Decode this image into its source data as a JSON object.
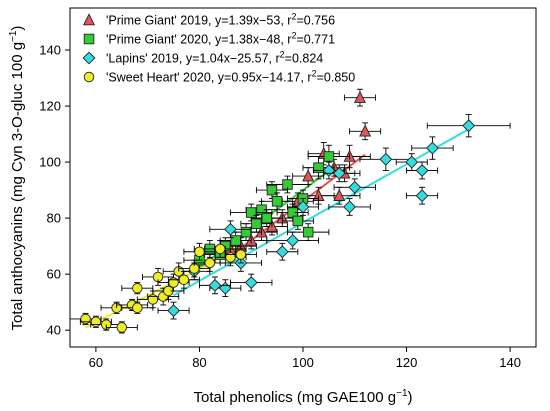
{
  "chart_data": {
    "type": "scatter",
    "xlabel": "Total phenolics (mg GAE100 g",
    "xlabel_sup": "−1",
    "xlabel_tail": ")",
    "ylabel": "Total anthocyanins (mg Cyn 3-O-gluc 100 g",
    "ylabel_sup": "−1",
    "ylabel_tail": ")",
    "xlim": [
      55,
      145
    ],
    "ylim": [
      34,
      155
    ],
    "xticks": [
      60,
      80,
      100,
      120,
      140
    ],
    "yticks": [
      40,
      60,
      80,
      100,
      120,
      140
    ],
    "grid": false,
    "legend_position": "top-left",
    "series": [
      {
        "name": "'Prime Giant' 2019, y=1.39x−53, r",
        "r2_sup": "2",
        "r2_value": "=0.756",
        "marker": "triangle",
        "color": "#e05555",
        "fit": {
          "slope": 1.39,
          "intercept": -53,
          "x": [
            85,
            112
          ]
        },
        "points": [
          {
            "x": 111,
            "y": 123,
            "xerr": 3,
            "yerr": 3
          },
          {
            "x": 112,
            "y": 111,
            "xerr": 3,
            "yerr": 3
          },
          {
            "x": 109,
            "y": 102,
            "xerr": 4,
            "yerr": 4
          },
          {
            "x": 104,
            "y": 103,
            "xerr": 3,
            "yerr": 4
          },
          {
            "x": 106,
            "y": 98,
            "xerr": 3,
            "yerr": 3
          },
          {
            "x": 108,
            "y": 96,
            "xerr": 3,
            "yerr": 3
          },
          {
            "x": 101,
            "y": 95,
            "xerr": 3,
            "yerr": 3
          },
          {
            "x": 107,
            "y": 88,
            "xerr": 4,
            "yerr": 3
          },
          {
            "x": 103,
            "y": 88,
            "xerr": 3,
            "yerr": 3
          },
          {
            "x": 99,
            "y": 86,
            "xerr": 3,
            "yerr": 3
          },
          {
            "x": 96,
            "y": 80,
            "xerr": 4,
            "yerr": 3
          },
          {
            "x": 94,
            "y": 77,
            "xerr": 3,
            "yerr": 3
          },
          {
            "x": 92,
            "y": 75,
            "xerr": 3,
            "yerr": 3
          },
          {
            "x": 90,
            "y": 72,
            "xerr": 3,
            "yerr": 3
          },
          {
            "x": 88,
            "y": 70,
            "xerr": 3,
            "yerr": 3
          },
          {
            "x": 86,
            "y": 69,
            "xerr": 3,
            "yerr": 3
          }
        ]
      },
      {
        "name": "'Prime Giant' 2020, y=1.38x−48, r",
        "r2_sup": "2",
        "r2_value": "=0.771",
        "marker": "square",
        "color": "#33cc33",
        "fit": {
          "slope": 1.38,
          "intercept": -48,
          "x": [
            80,
            106
          ]
        },
        "points": [
          {
            "x": 105,
            "y": 102,
            "xerr": 4,
            "yerr": 4
          },
          {
            "x": 103,
            "y": 98,
            "xerr": 3,
            "yerr": 4
          },
          {
            "x": 97,
            "y": 92,
            "xerr": 4,
            "yerr": 3
          },
          {
            "x": 100,
            "y": 87,
            "xerr": 3,
            "yerr": 3
          },
          {
            "x": 94,
            "y": 90,
            "xerr": 3,
            "yerr": 3
          },
          {
            "x": 95,
            "y": 86,
            "xerr": 3,
            "yerr": 3
          },
          {
            "x": 92,
            "y": 83,
            "xerr": 3,
            "yerr": 3
          },
          {
            "x": 93,
            "y": 80,
            "xerr": 3,
            "yerr": 3
          },
          {
            "x": 90,
            "y": 82,
            "xerr": 4,
            "yerr": 3
          },
          {
            "x": 91,
            "y": 78,
            "xerr": 3,
            "yerr": 3
          },
          {
            "x": 98,
            "y": 82,
            "xerr": 3,
            "yerr": 3
          },
          {
            "x": 99,
            "y": 79,
            "xerr": 3,
            "yerr": 3
          },
          {
            "x": 101,
            "y": 75,
            "xerr": 4,
            "yerr": 3
          },
          {
            "x": 89,
            "y": 75,
            "xerr": 3,
            "yerr": 3
          },
          {
            "x": 87,
            "y": 72,
            "xerr": 3,
            "yerr": 3
          },
          {
            "x": 85,
            "y": 70,
            "xerr": 3,
            "yerr": 3
          },
          {
            "x": 84,
            "y": 67,
            "xerr": 3,
            "yerr": 3
          },
          {
            "x": 82,
            "y": 69,
            "xerr": 3,
            "yerr": 3
          },
          {
            "x": 80,
            "y": 65,
            "xerr": 3,
            "yerr": 3
          }
        ]
      },
      {
        "name": "'Lapins' 2019, y=1.04x−25.57, r",
        "r2_sup": "2",
        "r2_value": "=0.824",
        "marker": "diamond",
        "color": "#33dddd",
        "fit": {
          "slope": 1.04,
          "intercept": -25.57,
          "x": [
            75,
            132
          ]
        },
        "points": [
          {
            "x": 132,
            "y": 113,
            "xerr": 8,
            "yerr": 4
          },
          {
            "x": 125,
            "y": 105,
            "xerr": 4,
            "yerr": 4
          },
          {
            "x": 116,
            "y": 101,
            "xerr": 5,
            "yerr": 4
          },
          {
            "x": 121,
            "y": 100,
            "xerr": 3,
            "yerr": 3
          },
          {
            "x": 123,
            "y": 97,
            "xerr": 3,
            "yerr": 3
          },
          {
            "x": 123,
            "y": 88,
            "xerr": 3,
            "yerr": 3
          },
          {
            "x": 110,
            "y": 91,
            "xerr": 4,
            "yerr": 3
          },
          {
            "x": 105,
            "y": 97,
            "xerr": 3,
            "yerr": 3
          },
          {
            "x": 107,
            "y": 96,
            "xerr": 3,
            "yerr": 3
          },
          {
            "x": 109,
            "y": 84,
            "xerr": 4,
            "yerr": 3
          },
          {
            "x": 100,
            "y": 84,
            "xerr": 3,
            "yerr": 3
          },
          {
            "x": 98,
            "y": 72,
            "xerr": 5,
            "yerr": 3
          },
          {
            "x": 96,
            "y": 68,
            "xerr": 3,
            "yerr": 3
          },
          {
            "x": 86,
            "y": 76,
            "xerr": 4,
            "yerr": 3
          },
          {
            "x": 88,
            "y": 64,
            "xerr": 4,
            "yerr": 3
          },
          {
            "x": 90,
            "y": 57,
            "xerr": 4,
            "yerr": 3
          },
          {
            "x": 85,
            "y": 55,
            "xerr": 3,
            "yerr": 3
          },
          {
            "x": 83,
            "y": 56,
            "xerr": 3,
            "yerr": 3
          },
          {
            "x": 75,
            "y": 47,
            "xerr": 3,
            "yerr": 3
          },
          {
            "x": 79,
            "y": 61,
            "xerr": 3,
            "yerr": 3
          }
        ]
      },
      {
        "name": "'Sweet Heart' 2020, y=0.95x−14.17, r",
        "r2_sup": "2",
        "r2_value": "=0.850",
        "marker": "circle",
        "color": "#eeee22",
        "fit": {
          "slope": 0.95,
          "intercept": -14.17,
          "x": [
            58,
            88
          ]
        },
        "points": [
          {
            "x": 58,
            "y": 44,
            "xerr": 3,
            "yerr": 2
          },
          {
            "x": 60,
            "y": 43,
            "xerr": 3,
            "yerr": 2
          },
          {
            "x": 62,
            "y": 42,
            "xerr": 3,
            "yerr": 2
          },
          {
            "x": 64,
            "y": 48,
            "xerr": 3,
            "yerr": 2
          },
          {
            "x": 65,
            "y": 41,
            "xerr": 3,
            "yerr": 2
          },
          {
            "x": 67,
            "y": 49,
            "xerr": 3,
            "yerr": 2
          },
          {
            "x": 68,
            "y": 48,
            "xerr": 3,
            "yerr": 2
          },
          {
            "x": 68,
            "y": 55,
            "xerr": 3,
            "yerr": 2
          },
          {
            "x": 71,
            "y": 51,
            "xerr": 3,
            "yerr": 3
          },
          {
            "x": 72,
            "y": 59,
            "xerr": 3,
            "yerr": 3
          },
          {
            "x": 73,
            "y": 52,
            "xerr": 3,
            "yerr": 3
          },
          {
            "x": 74,
            "y": 54,
            "xerr": 3,
            "yerr": 3
          },
          {
            "x": 75,
            "y": 57,
            "xerr": 3,
            "yerr": 3
          },
          {
            "x": 76,
            "y": 61,
            "xerr": 3,
            "yerr": 3
          },
          {
            "x": 77,
            "y": 58,
            "xerr": 3,
            "yerr": 3
          },
          {
            "x": 79,
            "y": 62,
            "xerr": 3,
            "yerr": 3
          },
          {
            "x": 80,
            "y": 68,
            "xerr": 3,
            "yerr": 3
          },
          {
            "x": 82,
            "y": 64,
            "xerr": 3,
            "yerr": 3
          },
          {
            "x": 84,
            "y": 69,
            "xerr": 3,
            "yerr": 3
          },
          {
            "x": 86,
            "y": 66,
            "xerr": 3,
            "yerr": 3
          },
          {
            "x": 88,
            "y": 67,
            "xerr": 3,
            "yerr": 3
          }
        ]
      }
    ]
  }
}
